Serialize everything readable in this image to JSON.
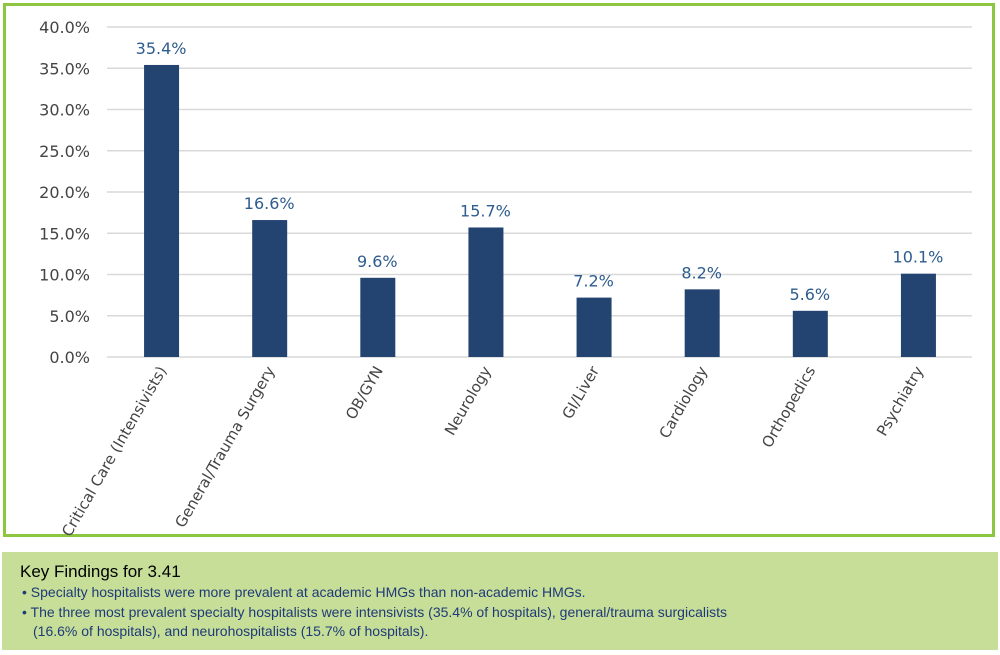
{
  "chart_data": {
    "type": "bar",
    "categories": [
      "Critical Care (Intensivists)",
      "General/Trauma Surgery",
      "OB/GYN",
      "Neurology",
      "GI/Liver",
      "Cardiology",
      "Orthopedics",
      "Psychiatry"
    ],
    "values": [
      35.4,
      16.6,
      9.6,
      15.7,
      7.2,
      8.2,
      5.6,
      10.1
    ],
    "data_labels": [
      "35.4%",
      "16.6%",
      "9.6%",
      "15.7%",
      "7.2%",
      "8.2%",
      "5.6%",
      "10.1%"
    ],
    "yticks": [
      "0.0%",
      "5.0%",
      "10.0%",
      "15.0%",
      "20.0%",
      "25.0%",
      "30.0%",
      "35.0%",
      "40.0%"
    ],
    "ylim": [
      0,
      40
    ],
    "grid": true,
    "bar_color": "#234370",
    "label_color": "#2e5c8e"
  },
  "key_findings": {
    "title": "Key Findings for 3.41",
    "bullets": [
      "• Specialty hospitalists were more prevalent at academic HMGs than non-academic HMGs.",
      "• The three most prevalent specialty hospitalists were intensivists (35.4% of hospitals), general/trauma surgicalists",
      "(16.6% of hospitals), and neurohospitalists (15.7% of hospitals)."
    ]
  }
}
